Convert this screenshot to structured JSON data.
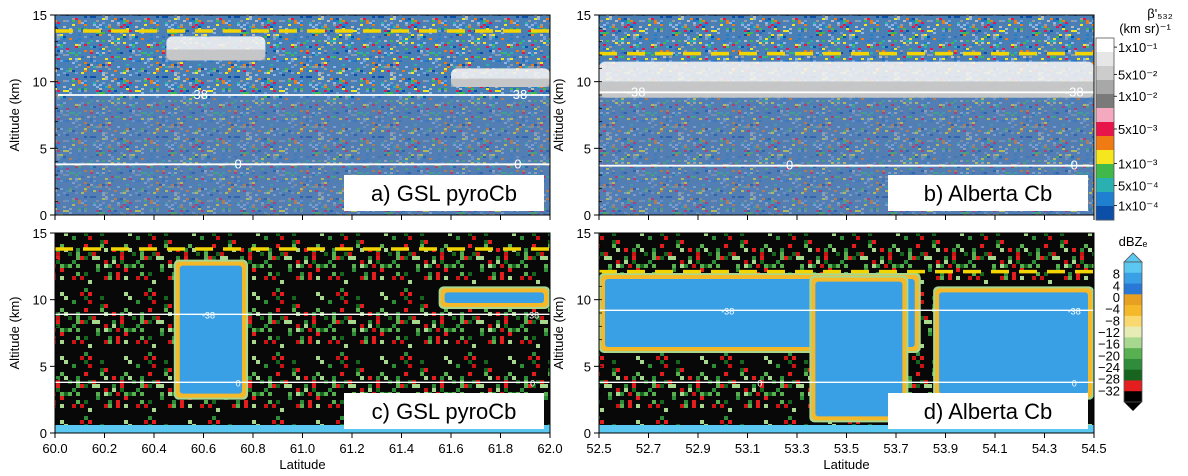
{
  "figure": {
    "yaxis_label": "Altitude (km)",
    "xaxis_label": "Latitude"
  },
  "colors": {
    "tropopause_line": "#f2d400",
    "isotherm_line": "#ffffff"
  },
  "colorscales": {
    "backscatter": {
      "title": "β'₅₃₂",
      "units": "(km sr)⁻¹",
      "labels": [
        "1x10⁻¹",
        "5x10⁻²",
        "1x10⁻²",
        "5x10⁻³",
        "1x10⁻³",
        "5x10⁻⁴",
        "1x10⁻⁴"
      ],
      "colors": [
        "#ffffff",
        "#e6e6e6",
        "#cccccc",
        "#a8a8a8",
        "#7a7a7a",
        "#f5a9c0",
        "#e8154a",
        "#f07b12",
        "#f5e61e",
        "#40b84a",
        "#2ab0b0",
        "#1f7fd0",
        "#0b4fa8"
      ]
    },
    "reflectivity": {
      "title": "dBZₑ",
      "labels": [
        "8",
        "4",
        "0",
        "−4",
        "−8",
        "−12",
        "−16",
        "−20",
        "−24",
        "−28",
        "−32"
      ],
      "colors": [
        "#5ac8f0",
        "#3aa0e6",
        "#2a78d6",
        "#e8a020",
        "#f4b828",
        "#fad870",
        "#e6ecb4",
        "#a8d890",
        "#58b050",
        "#2e8c3a",
        "#16641e",
        "#e41e1e",
        "#000000"
      ]
    }
  },
  "chart_data": [
    {
      "panel": "a",
      "type": "heatmap",
      "variable": "lidar attenuated backscatter",
      "label": "a) GSL pyroCb",
      "xlim": [
        60.0,
        62.0
      ],
      "ylim": [
        0,
        15
      ],
      "yticks": [
        0,
        5,
        10,
        15
      ],
      "xticks": [
        "60.0",
        "60.2",
        "60.4",
        "60.6",
        "60.8",
        "61.0",
        "61.2",
        "61.4",
        "61.6",
        "61.8",
        "62.0"
      ],
      "show_x_tick_labels": false,
      "tropopause_km": 13.8,
      "isotherms": [
        {
          "label": "-38",
          "altitude_km": 9.0,
          "label_positions": [
            60.58,
            61.87
          ]
        },
        {
          "label": "0",
          "altitude_km": 3.8,
          "label_positions": [
            60.74,
            61.87
          ]
        }
      ],
      "features": [
        {
          "kind": "cirrus",
          "x0": 60.45,
          "x1": 60.85,
          "bottom_km": 11.6,
          "top_km": 13.4
        },
        {
          "kind": "anvil",
          "x0": 61.6,
          "x1": 62.0,
          "bottom_km": 9.6,
          "top_km": 11.0
        }
      ]
    },
    {
      "panel": "b",
      "type": "heatmap",
      "variable": "lidar attenuated backscatter",
      "label": "b) Alberta  Cb",
      "xlim": [
        52.5,
        54.5
      ],
      "ylim": [
        0,
        15
      ],
      "yticks": [
        0,
        5,
        10,
        15
      ],
      "xticks": [
        "52.5",
        "52.7",
        "52.9",
        "53.1",
        "53.3",
        "53.5",
        "53.7",
        "53.9",
        "54.1",
        "54.3",
        "54.5"
      ],
      "show_x_tick_labels": false,
      "tropopause_km": 12.1,
      "isotherms": [
        {
          "label": "-38",
          "altitude_km": 9.2,
          "label_positions": [
            52.65,
            54.42
          ]
        },
        {
          "label": "0",
          "altitude_km": 3.7,
          "label_positions": [
            53.27,
            54.42
          ]
        }
      ],
      "features": [
        {
          "kind": "anvil",
          "x0": 52.5,
          "x1": 54.5,
          "bottom_km": 8.8,
          "top_km": 11.5
        }
      ]
    },
    {
      "panel": "c",
      "type": "heatmap",
      "variable": "radar reflectivity",
      "label": "c) GSL pyroCb",
      "xlim": [
        60.0,
        62.0
      ],
      "ylim": [
        0,
        15
      ],
      "yticks": [
        0,
        5,
        10,
        15
      ],
      "xticks": [
        "60.0",
        "60.2",
        "60.4",
        "60.6",
        "60.8",
        "61.0",
        "61.2",
        "61.4",
        "61.6",
        "61.8",
        "62.0"
      ],
      "show_x_tick_labels": true,
      "tropopause_km": 13.8,
      "isotherms": [
        {
          "label": "-38",
          "altitude_km": 8.9,
          "label_positions": [
            60.62,
            61.93
          ]
        },
        {
          "label": "0",
          "altitude_km": 3.8,
          "label_positions": [
            60.74,
            61.93
          ]
        }
      ],
      "features": [
        {
          "kind": "pyrocb_column",
          "x0": 60.48,
          "x1": 60.78,
          "bottom_km": 2.5,
          "top_km": 13.0
        },
        {
          "kind": "anvil",
          "x0": 61.55,
          "x1": 62.0,
          "bottom_km": 9.3,
          "top_km": 11.0
        }
      ]
    },
    {
      "panel": "d",
      "type": "heatmap",
      "variable": "radar reflectivity",
      "label": "d) Alberta Cb",
      "xlim": [
        52.5,
        54.5
      ],
      "ylim": [
        0,
        15
      ],
      "yticks": [
        0,
        5,
        10,
        15
      ],
      "xticks": [
        "52.5",
        "52.7",
        "52.9",
        "53.1",
        "53.3",
        "53.5",
        "53.7",
        "53.9",
        "54.1",
        "54.3",
        "54.5"
      ],
      "show_x_tick_labels": true,
      "tropopause_km": 12.1,
      "isotherms": [
        {
          "label": "-38",
          "altitude_km": 9.2,
          "label_positions": [
            53.02,
            54.42
          ]
        },
        {
          "label": "0",
          "altitude_km": 3.8,
          "label_positions": [
            53.15,
            54.42
          ]
        }
      ],
      "features": [
        {
          "kind": "anvil",
          "x0": 52.5,
          "x1": 53.8,
          "bottom_km": 6.0,
          "top_km": 12.0
        },
        {
          "kind": "core",
          "x0": 53.35,
          "x1": 53.75,
          "bottom_km": 0.8,
          "top_km": 11.8
        },
        {
          "kind": "cells",
          "x0": 53.85,
          "x1": 54.5,
          "bottom_km": 2.5,
          "top_km": 11.0
        }
      ]
    }
  ]
}
